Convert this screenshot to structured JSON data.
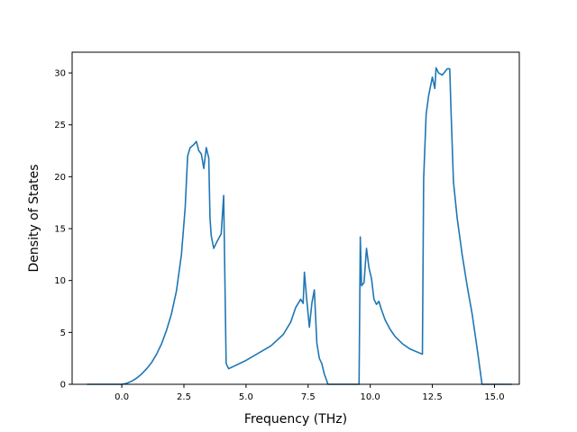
{
  "chart_data": {
    "type": "line",
    "title": "",
    "xlabel": "Frequency (THz)",
    "ylabel": "Density of States",
    "xlim": [
      -2.0,
      16.0
    ],
    "ylim": [
      0,
      32
    ],
    "grid": false,
    "xticks": [
      0.0,
      2.5,
      5.0,
      7.5,
      10.0,
      12.5,
      15.0
    ],
    "xtick_labels": [
      "0.0",
      "2.5",
      "5.0",
      "7.5",
      "10.0",
      "12.5",
      "15.0"
    ],
    "yticks": [
      0,
      5,
      10,
      15,
      20,
      25,
      30
    ],
    "ytick_labels": [
      "0",
      "5",
      "10",
      "15",
      "20",
      "25",
      "30"
    ],
    "line_color": "#1f77b4",
    "series": [
      {
        "x": [
          -1.4,
          -0.5,
          0.0,
          0.2,
          0.4,
          0.6,
          0.8,
          1.0,
          1.2,
          1.4,
          1.6,
          1.8,
          2.0,
          2.2,
          2.4,
          2.55,
          2.65,
          2.75,
          2.9,
          3.0,
          3.1,
          3.2,
          3.3,
          3.4,
          3.5,
          3.55,
          3.6,
          3.7,
          3.8,
          4.0,
          4.1,
          4.15,
          4.2,
          4.3,
          5.0,
          6.0,
          6.5,
          6.8,
          7.0,
          7.1,
          7.2,
          7.3,
          7.35,
          7.45,
          7.55,
          7.65,
          7.75,
          7.85,
          7.95,
          8.05,
          8.15,
          8.3,
          8.5,
          9.55,
          9.6,
          9.65,
          9.75,
          9.85,
          9.95,
          10.05,
          10.15,
          10.25,
          10.35,
          10.45,
          10.6,
          10.8,
          11.0,
          11.3,
          11.6,
          12.1,
          12.15,
          12.25,
          12.35,
          12.5,
          12.6,
          12.65,
          12.75,
          12.9,
          13.0,
          13.1,
          13.2,
          13.25,
          13.35,
          13.5,
          13.7,
          13.9,
          14.1,
          14.3,
          14.5,
          15.0,
          15.7
        ],
        "values": [
          0,
          0,
          0,
          0.1,
          0.3,
          0.6,
          1.0,
          1.5,
          2.1,
          2.9,
          3.9,
          5.2,
          6.8,
          9.0,
          12.5,
          17.0,
          22.0,
          22.8,
          23.1,
          23.4,
          22.5,
          22.2,
          20.8,
          22.8,
          21.8,
          16.0,
          14.3,
          13.1,
          13.6,
          14.5,
          18.2,
          10.0,
          2.0,
          1.5,
          2.3,
          3.7,
          4.8,
          6.0,
          7.4,
          7.8,
          8.2,
          7.8,
          10.8,
          8.0,
          5.5,
          7.8,
          9.1,
          4.0,
          2.5,
          2.0,
          1.0,
          0,
          0,
          0,
          14.2,
          9.5,
          9.8,
          13.1,
          11.2,
          10.2,
          8.2,
          7.7,
          8.0,
          7.2,
          6.2,
          5.3,
          4.6,
          3.9,
          3.4,
          2.9,
          19.8,
          26.0,
          27.8,
          29.6,
          28.5,
          30.5,
          30.0,
          29.8,
          30.1,
          30.4,
          30.4,
          26.5,
          19.5,
          16.0,
          12.5,
          9.5,
          6.8,
          3.5,
          0,
          0,
          0
        ]
      }
    ]
  }
}
